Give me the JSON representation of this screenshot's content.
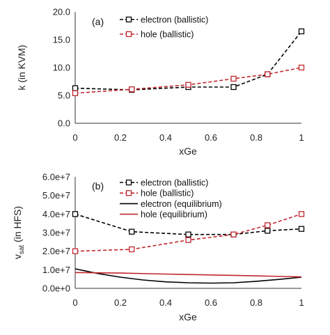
{
  "chart_data": [
    {
      "type": "line",
      "panel_label": "(a)",
      "xlabel": "xGe",
      "ylabel": "k (in KVM)",
      "xlim": [
        0,
        1
      ],
      "ylim": [
        0,
        20
      ],
      "xticks": [
        "0",
        "0.2",
        "0.4",
        "0.6",
        "0.8",
        "1"
      ],
      "yticks": [
        "0.0",
        "5.0",
        "10.0",
        "15.0",
        "20.0"
      ],
      "legend_position": "top-center",
      "series": [
        {
          "name": "electron (ballistic)",
          "color": "#000000",
          "dash": true,
          "marker": "square",
          "x": [
            0,
            0.25,
            0.5,
            0.7,
            0.85,
            1
          ],
          "y": [
            6.3,
            6.0,
            6.5,
            6.5,
            8.8,
            16.5
          ]
        },
        {
          "name": "hole (ballistic)",
          "color": "#c0272d",
          "dash": true,
          "marker": "square",
          "x": [
            0,
            0.25,
            0.5,
            0.7,
            0.85,
            1
          ],
          "y": [
            5.4,
            6.1,
            6.9,
            8.0,
            8.8,
            10.0
          ]
        }
      ]
    },
    {
      "type": "line",
      "panel_label": "(b)",
      "xlabel": "xGe",
      "ylabel_main": "v",
      "ylabel_sub": "sat",
      "ylabel_rest": " (in HFS)",
      "xlim": [
        0,
        1
      ],
      "ylim": [
        0,
        60000000
      ],
      "xticks": [
        "0",
        "0.2",
        "0.4",
        "0.6",
        "0.8",
        "1"
      ],
      "yticks": [
        "0.0e+0",
        "1.0e+7",
        "2.0e+7",
        "3.0e+7",
        "4.0e+7",
        "5.0e+7",
        "6.0e+7"
      ],
      "legend_position": "top-center",
      "series": [
        {
          "name": "electron (ballistic)",
          "color": "#000000",
          "dash": true,
          "marker": "square",
          "x": [
            0,
            0.25,
            0.5,
            0.7,
            0.85,
            1
          ],
          "y": [
            40000000,
            30500000,
            29000000,
            29000000,
            31000000,
            32000000
          ]
        },
        {
          "name": "hole (ballistic)",
          "color": "#c0272d",
          "dash": true,
          "marker": "square",
          "x": [
            0,
            0.25,
            0.5,
            0.7,
            0.85,
            1
          ],
          "y": [
            20000000,
            21000000,
            26000000,
            29000000,
            34000000,
            40000000
          ]
        },
        {
          "name": "electron (equilibrium)",
          "color": "#000000",
          "dash": false,
          "marker": "none",
          "x": [
            0,
            0.1,
            0.2,
            0.3,
            0.4,
            0.5,
            0.6,
            0.7,
            0.8,
            0.9,
            1
          ],
          "y": [
            10500000,
            8000000,
            6000000,
            4500000,
            3500000,
            3000000,
            2800000,
            3000000,
            3800000,
            4800000,
            6000000
          ]
        },
        {
          "name": "hole (equilibrium)",
          "color": "#c0272d",
          "dash": false,
          "marker": "none",
          "x": [
            0,
            0.2,
            0.4,
            0.6,
            0.8,
            1
          ],
          "y": [
            8500000,
            8200000,
            7700000,
            7200000,
            6700000,
            6200000
          ]
        }
      ]
    }
  ]
}
